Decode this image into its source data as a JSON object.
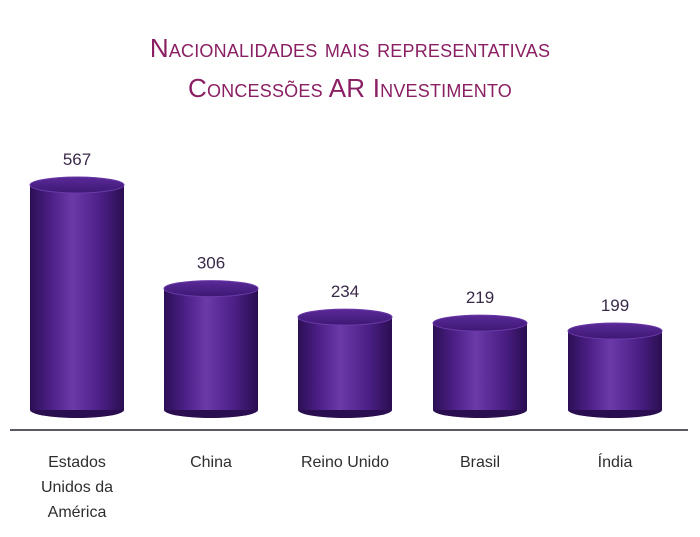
{
  "title_line1": "Nacionalidades mais representativas",
  "title_line2": "Concessões AR Investimento",
  "colors": {
    "bar_main": "#4b1f86",
    "bar_dark": "#2c0f55",
    "bar_light": "#6b3aa8",
    "title": "#8a1f63",
    "axis": "#5a5a66"
  },
  "chart_data": {
    "type": "bar",
    "style": "3d-cylinder",
    "title": "Nacionalidades mais representativas Concessões AR Investimento",
    "categories": [
      [
        "Estados",
        "Unidos da",
        "América"
      ],
      [
        "China"
      ],
      [
        "Reino Unido"
      ],
      [
        "Brasil"
      ],
      [
        "Índia"
      ]
    ],
    "values": [
      567,
      306,
      234,
      219,
      199
    ],
    "ylim": [
      0,
      600
    ],
    "grid": false,
    "legend": "none"
  }
}
